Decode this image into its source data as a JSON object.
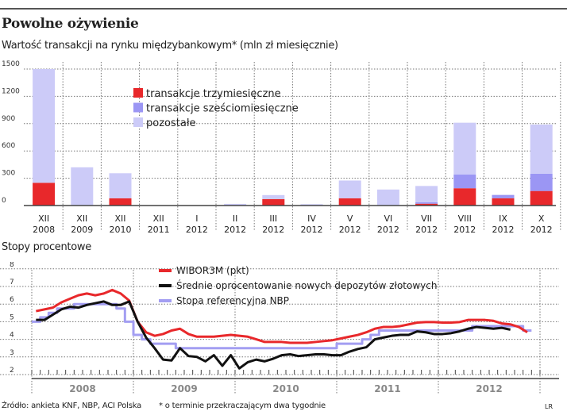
{
  "title": "Powolne ożywienie",
  "source": "Źródło: ankieta KNF, NBP, ACI Polska",
  "footnote": "* o terminie przekraczającym dwa tygodnie",
  "credit": "LR",
  "chart_data": [
    {
      "type": "bar",
      "stacked": true,
      "title": "Wartość transakcji na rynku międzybankowym* (mln zł miesięcznie)",
      "ylim": [
        0,
        1500
      ],
      "yticks": [
        "0",
        "300",
        "600",
        "900",
        "1200",
        "1500"
      ],
      "grid": true,
      "legend_position": "top-center",
      "categories": [
        [
          "XII",
          "2008"
        ],
        [
          "XII",
          "2009"
        ],
        [
          "XII",
          "2010"
        ],
        [
          "XII",
          "2011"
        ],
        [
          "I",
          "2012"
        ],
        [
          "II",
          "2012"
        ],
        [
          "III",
          "2012"
        ],
        [
          "IV",
          "2012"
        ],
        [
          "V",
          "2012"
        ],
        [
          "VI",
          "2012"
        ],
        [
          "VII",
          "2012"
        ],
        [
          "VIII",
          "2012"
        ],
        [
          "IX",
          "2012"
        ],
        [
          "X",
          "2012"
        ]
      ],
      "series": [
        {
          "name": "transakcje trzymiesięczne",
          "color": "#e8282b",
          "values": [
            250,
            0,
            80,
            0,
            0,
            0,
            70,
            0,
            80,
            0,
            20,
            190,
            80,
            160
          ]
        },
        {
          "name": "transakcje sześciomiesięczne",
          "color": "#9b96f4",
          "values": [
            0,
            0,
            0,
            0,
            0,
            0,
            0,
            0,
            0,
            0,
            15,
            150,
            35,
            190
          ]
        },
        {
          "name": "pozostałe",
          "color": "#cccbf8",
          "values": [
            1250,
            420,
            275,
            0,
            0,
            18,
            45,
            15,
            195,
            176,
            180,
            570,
            5,
            540
          ]
        }
      ]
    },
    {
      "type": "line",
      "title": "Stopy procentowe",
      "ylim": [
        2,
        8
      ],
      "yticks": [
        "2",
        "3",
        "4",
        "5",
        "6",
        "7",
        "8"
      ],
      "x_start": "2008-01",
      "x_unit": "month",
      "xlabels": [
        "2008",
        "2009",
        "2010",
        "2011",
        "2012"
      ],
      "grid": true,
      "legend_position": "top-center",
      "series": [
        {
          "name": "WIBOR3M (pkt)",
          "color": "#e8282b",
          "step": false,
          "values": [
            5.6,
            5.7,
            5.8,
            6.1,
            6.3,
            6.5,
            6.6,
            6.5,
            6.6,
            6.8,
            6.6,
            6.2,
            5.0,
            4.4,
            4.2,
            4.3,
            4.5,
            4.6,
            4.3,
            4.15,
            4.15,
            4.15,
            4.2,
            4.25,
            4.2,
            4.15,
            4.0,
            3.85,
            3.85,
            3.85,
            3.8,
            3.8,
            3.8,
            3.85,
            3.9,
            3.95,
            4.05,
            4.15,
            4.25,
            4.4,
            4.6,
            4.7,
            4.7,
            4.75,
            4.85,
            4.95,
            4.98,
            4.98,
            4.95,
            4.95,
            4.98,
            5.1,
            5.1,
            5.1,
            5.05,
            4.9,
            4.85,
            4.7,
            4.4
          ]
        },
        {
          "name": "Średnie oprocentowanie nowych depozytów złotowych",
          "color": "#111111",
          "step": false,
          "values": [
            5.1,
            5.1,
            5.4,
            5.7,
            5.85,
            5.8,
            5.95,
            6.05,
            6.15,
            5.95,
            5.95,
            6.15,
            5.0,
            4.1,
            3.5,
            2.85,
            2.8,
            3.5,
            3.05,
            3.0,
            2.75,
            3.1,
            2.5,
            3.1,
            2.35,
            2.7,
            2.85,
            2.75,
            2.9,
            3.1,
            3.15,
            3.05,
            3.1,
            3.15,
            3.15,
            3.1,
            3.1,
            3.3,
            3.45,
            3.55,
            4.0,
            4.1,
            4.2,
            4.25,
            4.25,
            4.45,
            4.4,
            4.3,
            4.3,
            4.35,
            4.45,
            4.6,
            4.7,
            4.65,
            4.6,
            4.65,
            4.55
          ]
        },
        {
          "name": "Stopa referencyjna NBP",
          "color": "#a39ef2",
          "step": true,
          "values": [
            5.0,
            5.25,
            5.5,
            5.75,
            5.75,
            6.0,
            6.0,
            6.0,
            6.0,
            6.0,
            5.75,
            5.0,
            4.25,
            4.0,
            3.75,
            3.75,
            3.75,
            3.5,
            3.5,
            3.5,
            3.5,
            3.5,
            3.5,
            3.5,
            3.5,
            3.5,
            3.5,
            3.5,
            3.5,
            3.5,
            3.5,
            3.5,
            3.5,
            3.5,
            3.5,
            3.5,
            3.75,
            3.75,
            3.75,
            4.0,
            4.25,
            4.5,
            4.5,
            4.5,
            4.5,
            4.5,
            4.5,
            4.5,
            4.5,
            4.5,
            4.5,
            4.5,
            4.75,
            4.75,
            4.75,
            4.75,
            4.75,
            4.75,
            4.5
          ]
        }
      ]
    }
  ]
}
